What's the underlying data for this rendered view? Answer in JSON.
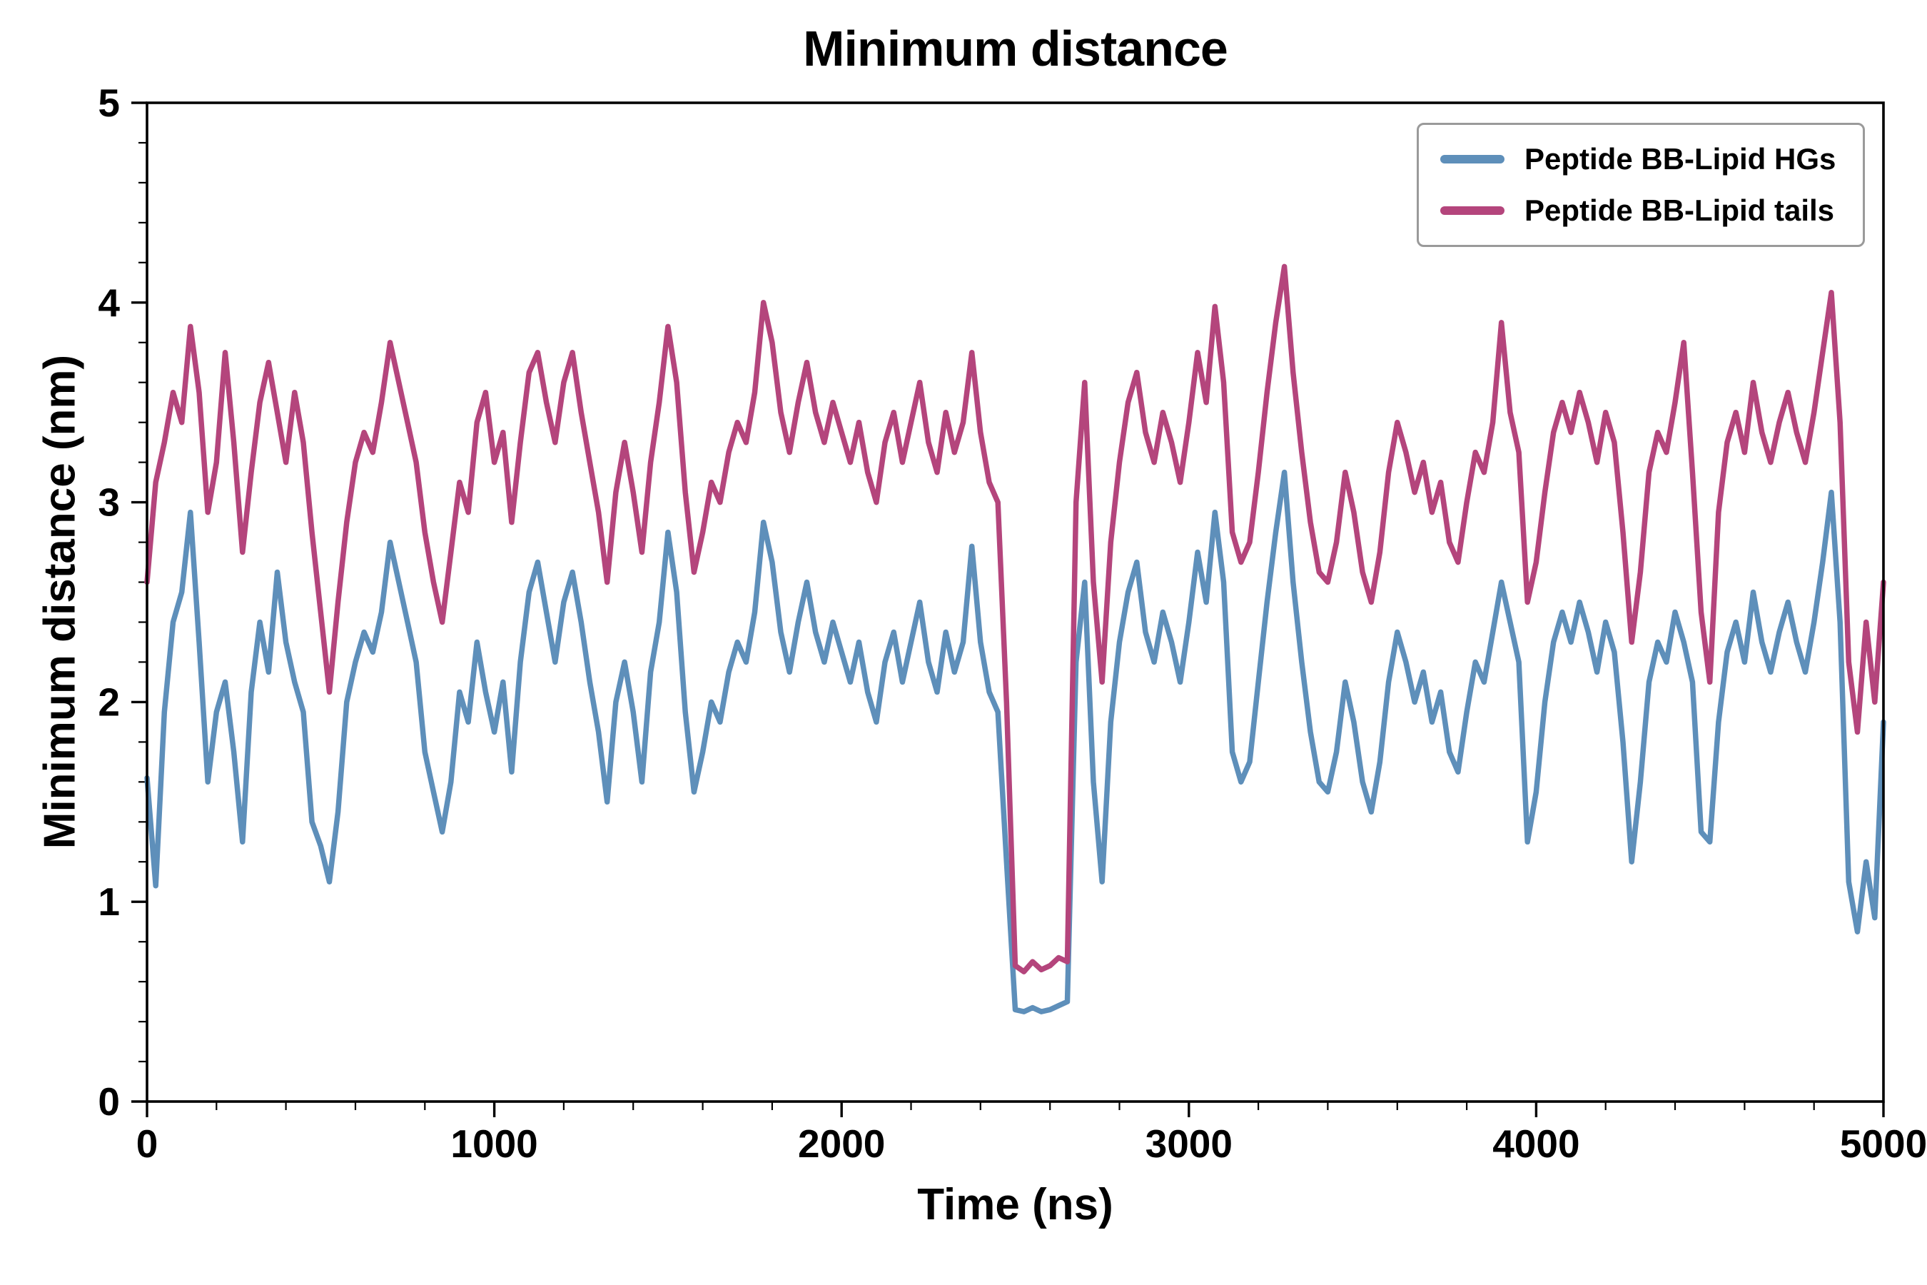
{
  "chart_data": {
    "type": "line",
    "title": "Minimum distance",
    "xlabel": "Time (ns)",
    "ylabel": "Minimum distance (nm)",
    "xlim": [
      0,
      5000
    ],
    "ylim": [
      0,
      5
    ],
    "x_ticks": [
      0,
      1000,
      2000,
      3000,
      4000,
      5000
    ],
    "y_ticks": [
      0,
      1,
      2,
      3,
      4,
      5
    ],
    "x_minor_step": 200,
    "y_minor_step": 0.2,
    "grid": false,
    "legend_position": "upper right",
    "background": "#ffffff",
    "axis_color": "#000000",
    "x_start": 0,
    "x_step": 25,
    "series": [
      {
        "name": "Peptide BB-Lipid HGs",
        "color": "#5e8fba",
        "values": [
          1.62,
          1.08,
          1.95,
          2.4,
          2.55,
          2.95,
          2.3,
          1.6,
          1.95,
          2.1,
          1.75,
          1.3,
          2.05,
          2.4,
          2.15,
          2.65,
          2.3,
          2.1,
          1.95,
          1.4,
          1.28,
          1.1,
          1.45,
          2.0,
          2.2,
          2.35,
          2.25,
          2.45,
          2.8,
          2.6,
          2.4,
          2.2,
          1.75,
          1.55,
          1.35,
          1.6,
          2.05,
          1.9,
          2.3,
          2.05,
          1.85,
          2.1,
          1.65,
          2.2,
          2.55,
          2.7,
          2.45,
          2.2,
          2.5,
          2.65,
          2.4,
          2.1,
          1.85,
          1.5,
          2.0,
          2.2,
          1.95,
          1.6,
          2.15,
          2.4,
          2.85,
          2.55,
          1.95,
          1.55,
          1.75,
          2.0,
          1.9,
          2.15,
          2.3,
          2.2,
          2.45,
          2.9,
          2.7,
          2.35,
          2.15,
          2.4,
          2.6,
          2.35,
          2.2,
          2.4,
          2.25,
          2.1,
          2.3,
          2.05,
          1.9,
          2.2,
          2.35,
          2.1,
          2.3,
          2.5,
          2.2,
          2.05,
          2.35,
          2.15,
          2.3,
          2.78,
          2.3,
          2.05,
          1.95,
          1.2,
          0.46,
          0.45,
          0.47,
          0.45,
          0.46,
          0.48,
          0.5,
          2.2,
          2.6,
          1.6,
          1.1,
          1.9,
          2.3,
          2.55,
          2.7,
          2.35,
          2.2,
          2.45,
          2.3,
          2.1,
          2.4,
          2.75,
          2.5,
          2.95,
          2.6,
          1.75,
          1.6,
          1.7,
          2.1,
          2.5,
          2.85,
          3.15,
          2.6,
          2.2,
          1.85,
          1.6,
          1.55,
          1.75,
          2.1,
          1.9,
          1.6,
          1.45,
          1.7,
          2.1,
          2.35,
          2.2,
          2.0,
          2.15,
          1.9,
          2.05,
          1.75,
          1.65,
          1.95,
          2.2,
          2.1,
          2.35,
          2.6,
          2.4,
          2.2,
          1.3,
          1.55,
          2.0,
          2.3,
          2.45,
          2.3,
          2.5,
          2.35,
          2.15,
          2.4,
          2.25,
          1.8,
          1.2,
          1.6,
          2.1,
          2.3,
          2.2,
          2.45,
          2.3,
          2.1,
          1.35,
          1.3,
          1.9,
          2.25,
          2.4,
          2.2,
          2.55,
          2.3,
          2.15,
          2.35,
          2.5,
          2.3,
          2.15,
          2.4,
          2.7,
          3.05,
          2.4,
          1.1,
          0.85,
          1.2,
          0.92,
          1.9
        ]
      },
      {
        "name": "Peptide BB-Lipid tails",
        "color": "#b4457c",
        "values": [
          2.6,
          3.1,
          3.3,
          3.55,
          3.4,
          3.88,
          3.55,
          2.95,
          3.2,
          3.75,
          3.3,
          2.75,
          3.15,
          3.5,
          3.7,
          3.45,
          3.2,
          3.55,
          3.3,
          2.85,
          2.45,
          2.05,
          2.5,
          2.9,
          3.2,
          3.35,
          3.25,
          3.5,
          3.8,
          3.6,
          3.4,
          3.2,
          2.85,
          2.6,
          2.4,
          2.75,
          3.1,
          2.95,
          3.4,
          3.55,
          3.2,
          3.35,
          2.9,
          3.3,
          3.65,
          3.75,
          3.5,
          3.3,
          3.6,
          3.75,
          3.45,
          3.2,
          2.95,
          2.6,
          3.05,
          3.3,
          3.05,
          2.75,
          3.2,
          3.5,
          3.88,
          3.6,
          3.05,
          2.65,
          2.85,
          3.1,
          3.0,
          3.25,
          3.4,
          3.3,
          3.55,
          4.0,
          3.8,
          3.45,
          3.25,
          3.5,
          3.7,
          3.45,
          3.3,
          3.5,
          3.35,
          3.2,
          3.4,
          3.15,
          3.0,
          3.3,
          3.45,
          3.2,
          3.4,
          3.6,
          3.3,
          3.15,
          3.45,
          3.25,
          3.4,
          3.75,
          3.35,
          3.1,
          3.0,
          2.0,
          0.68,
          0.65,
          0.7,
          0.66,
          0.68,
          0.72,
          0.7,
          3.0,
          3.6,
          2.6,
          2.1,
          2.8,
          3.2,
          3.5,
          3.65,
          3.35,
          3.2,
          3.45,
          3.3,
          3.1,
          3.4,
          3.75,
          3.5,
          3.98,
          3.6,
          2.85,
          2.7,
          2.8,
          3.15,
          3.55,
          3.9,
          4.18,
          3.65,
          3.25,
          2.9,
          2.65,
          2.6,
          2.8,
          3.15,
          2.95,
          2.65,
          2.5,
          2.75,
          3.15,
          3.4,
          3.25,
          3.05,
          3.2,
          2.95,
          3.1,
          2.8,
          2.7,
          3.0,
          3.25,
          3.15,
          3.4,
          3.9,
          3.45,
          3.25,
          2.5,
          2.7,
          3.05,
          3.35,
          3.5,
          3.35,
          3.55,
          3.4,
          3.2,
          3.45,
          3.3,
          2.85,
          2.3,
          2.65,
          3.15,
          3.35,
          3.25,
          3.5,
          3.8,
          3.15,
          2.45,
          2.1,
          2.95,
          3.3,
          3.45,
          3.25,
          3.6,
          3.35,
          3.2,
          3.4,
          3.55,
          3.35,
          3.2,
          3.45,
          3.75,
          4.05,
          3.4,
          2.2,
          1.85,
          2.4,
          2.0,
          2.6
        ]
      }
    ]
  }
}
